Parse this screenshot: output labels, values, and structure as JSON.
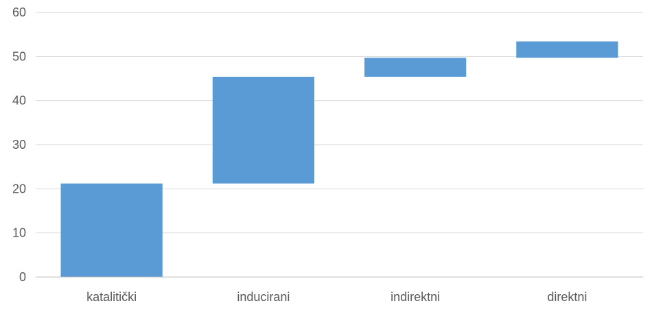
{
  "chart_data": {
    "type": "bar",
    "subtype": "waterfall",
    "categories": [
      "katalitički",
      "inducirani",
      "indirektni",
      "direktni"
    ],
    "deltas": [
      21.2,
      24.2,
      4.3,
      3.7
    ],
    "cumulative": [
      21.2,
      45.4,
      49.7,
      53.4
    ],
    "ylim": [
      0,
      60
    ],
    "yticks": [
      "0",
      "10",
      "20",
      "30",
      "40",
      "50",
      "60"
    ],
    "title": "",
    "xlabel": "",
    "ylabel": "",
    "grid": true,
    "legend": "none",
    "bar_color": "#5B9BD5",
    "grid_color": "#D9D9D9",
    "axis_color": "#BFBFBF"
  }
}
